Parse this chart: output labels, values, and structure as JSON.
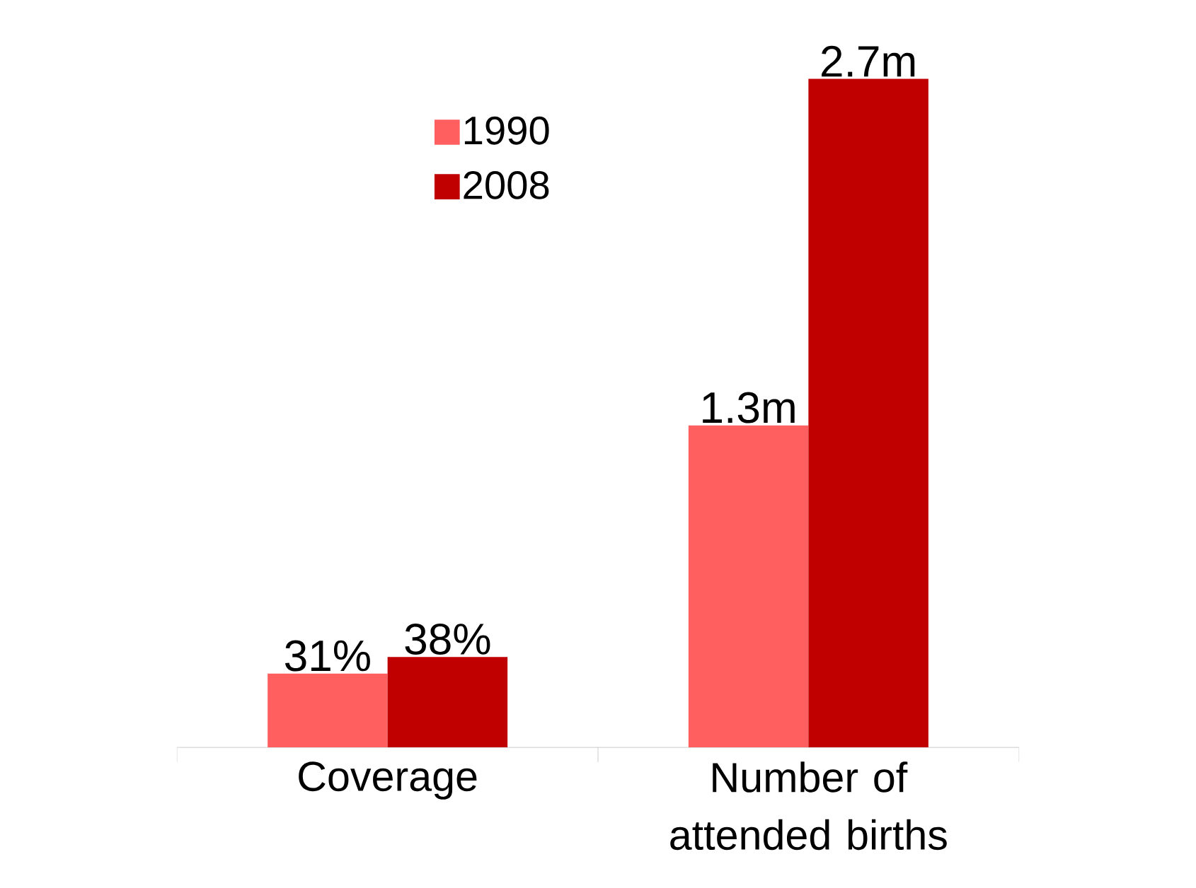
{
  "chart_data": [
    {
      "type": "bar",
      "categories": [
        "Coverage"
      ],
      "series": [
        {
          "name": "1990",
          "color": "#ff5f5f",
          "values": [
            31
          ],
          "value_labels": [
            "31%"
          ]
        },
        {
          "name": "2008",
          "color": "#c00000",
          "values": [
            38
          ],
          "value_labels": [
            "38%"
          ]
        }
      ],
      "legend": "top right"
    },
    {
      "type": "bar",
      "categories": [
        "Number of attended births"
      ],
      "series": [
        {
          "color": "#ff5f5f",
          "values": [
            1.3
          ],
          "value_labels": [
            "1.3m"
          ]
        },
        {
          "color": "#c00000",
          "values": [
            2.7
          ],
          "value_labels": [
            "2.7m"
          ]
        }
      ]
    }
  ]
}
